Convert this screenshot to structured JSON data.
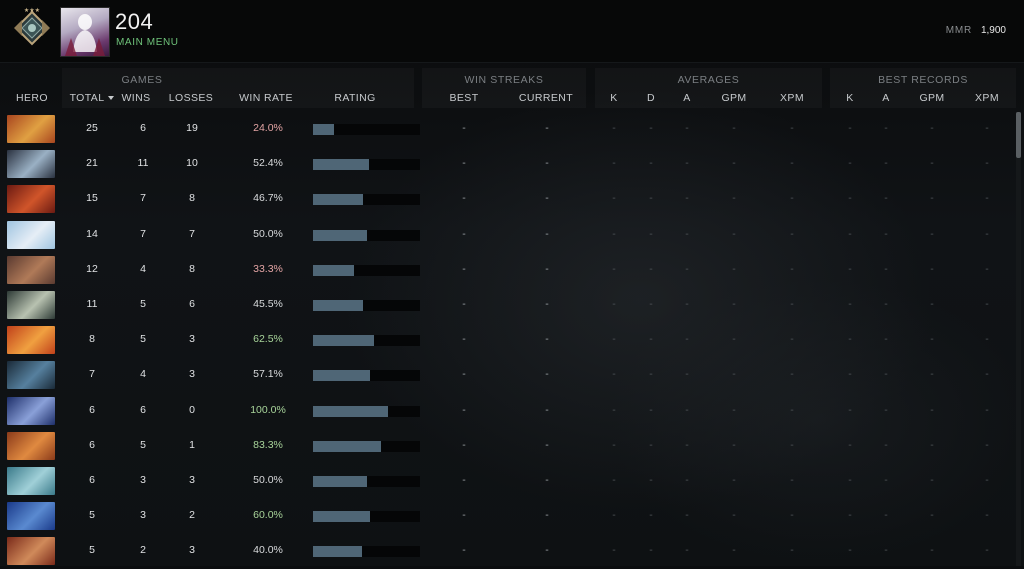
{
  "player": {
    "name": "204",
    "main_menu_label": "MAIN MENU",
    "mmr_label": "MMR",
    "mmr_value": "1,900"
  },
  "header": {
    "groups": {
      "games": "GAMES",
      "win_streaks": "WIN STREAKS",
      "averages": "AVERAGES",
      "best_records": "BEST RECORDS"
    },
    "columns": {
      "hero": "HERO",
      "total": "TOTAL",
      "wins": "WINS",
      "losses": "LOSSES",
      "win_rate": "WIN RATE",
      "rating": "RATING",
      "best": "BEST",
      "current": "CURRENT",
      "avg_k": "K",
      "avg_d": "D",
      "avg_a": "A",
      "avg_gpm": "GPM",
      "avg_xpm": "XPM",
      "best_k": "K",
      "best_a": "A",
      "best_gpm": "GPM",
      "best_xpm": "XPM"
    }
  },
  "colors": {
    "win_good": "#a8d49a",
    "win_bad": "#e3a4a4",
    "win_neutral": "#d9dbdd",
    "accent_green": "#6fc37a",
    "bar_fill": "#4f6676"
  },
  "placeholder": "-",
  "rows": [
    {
      "hero_icon": "hero-1-icon",
      "total": "25",
      "wins": "6",
      "losses": "19",
      "win_rate": "24.0%",
      "tone": "bad",
      "rating": 0.2
    },
    {
      "hero_icon": "hero-2-icon",
      "total": "21",
      "wins": "11",
      "losses": "10",
      "win_rate": "52.4%",
      "tone": "neutral",
      "rating": 0.52
    },
    {
      "hero_icon": "hero-3-icon",
      "total": "15",
      "wins": "7",
      "losses": "8",
      "win_rate": "46.7%",
      "tone": "neutral",
      "rating": 0.47
    },
    {
      "hero_icon": "hero-4-icon",
      "total": "14",
      "wins": "7",
      "losses": "7",
      "win_rate": "50.0%",
      "tone": "neutral",
      "rating": 0.5
    },
    {
      "hero_icon": "hero-5-icon",
      "total": "12",
      "wins": "4",
      "losses": "8",
      "win_rate": "33.3%",
      "tone": "bad",
      "rating": 0.38
    },
    {
      "hero_icon": "hero-6-icon",
      "total": "11",
      "wins": "5",
      "losses": "6",
      "win_rate": "45.5%",
      "tone": "neutral",
      "rating": 0.47
    },
    {
      "hero_icon": "hero-7-icon",
      "total": "8",
      "wins": "5",
      "losses": "3",
      "win_rate": "62.5%",
      "tone": "good",
      "rating": 0.57
    },
    {
      "hero_icon": "hero-8-icon",
      "total": "7",
      "wins": "4",
      "losses": "3",
      "win_rate": "57.1%",
      "tone": "neutral",
      "rating": 0.53
    },
    {
      "hero_icon": "hero-9-icon",
      "total": "6",
      "wins": "6",
      "losses": "0",
      "win_rate": "100.0%",
      "tone": "good",
      "rating": 0.7
    },
    {
      "hero_icon": "hero-10-icon",
      "total": "6",
      "wins": "5",
      "losses": "1",
      "win_rate": "83.3%",
      "tone": "good",
      "rating": 0.64
    },
    {
      "hero_icon": "hero-11-icon",
      "total": "6",
      "wins": "3",
      "losses": "3",
      "win_rate": "50.0%",
      "tone": "neutral",
      "rating": 0.5
    },
    {
      "hero_icon": "hero-12-icon",
      "total": "5",
      "wins": "3",
      "losses": "2",
      "win_rate": "60.0%",
      "tone": "good",
      "rating": 0.53
    },
    {
      "hero_icon": "hero-13-icon",
      "total": "5",
      "wins": "2",
      "losses": "3",
      "win_rate": "40.0%",
      "tone": "neutral",
      "rating": 0.46
    }
  ]
}
